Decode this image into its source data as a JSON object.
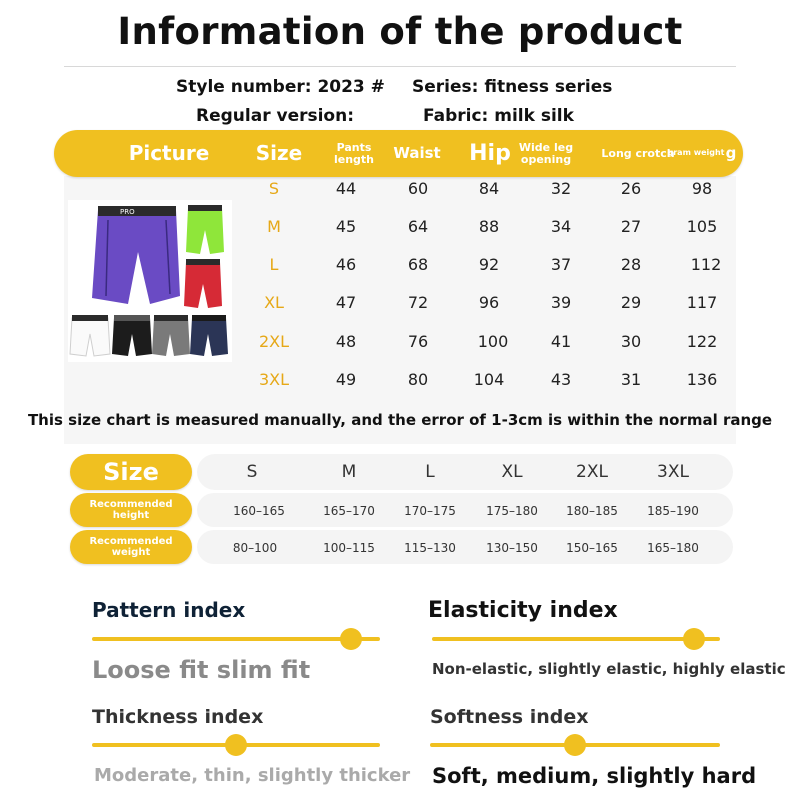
{
  "title": "Information of the product",
  "info": {
    "style_number": "Style number: 2023 #",
    "series": "Series: fitness series",
    "version": "Regular version:",
    "fabric": "Fabric: milk silk"
  },
  "size_table": {
    "headers": {
      "picture": "Picture",
      "size": "Size",
      "pants_length": [
        "Pants",
        "length"
      ],
      "waist": "Waist",
      "hip": "Hip",
      "wide_leg": [
        "Wide leg",
        "opening"
      ],
      "long_crotch": "Long crotch",
      "gram_weight": "gram weight",
      "gram_unit": "g"
    },
    "rows": [
      {
        "size": "S",
        "pants_length": "44",
        "waist": "60",
        "hip": "84",
        "wide_leg": "32",
        "long_crotch": "26",
        "weight": "98"
      },
      {
        "size": "M",
        "pants_length": "45",
        "waist": "64",
        "hip": "88",
        "wide_leg": "34",
        "long_crotch": "27",
        "weight": "105"
      },
      {
        "size": "L",
        "pants_length": "46",
        "waist": "68",
        "hip": "92",
        "wide_leg": "37",
        "long_crotch": "28",
        "weight": "112"
      },
      {
        "size": "XL",
        "pants_length": "47",
        "waist": "72",
        "hip": "96",
        "wide_leg": "39",
        "long_crotch": "29",
        "weight": "117"
      },
      {
        "size": "2XL",
        "pants_length": "48",
        "waist": "76",
        "hip": "100",
        "wide_leg": "41",
        "long_crotch": "30",
        "weight": "122"
      },
      {
        "size": "3XL",
        "pants_length": "49",
        "waist": "80",
        "hip": "104",
        "wide_leg": "43",
        "long_crotch": "31",
        "weight": "136"
      }
    ],
    "waistband_text": "PRO"
  },
  "note": "This size chart is measured manually, and the error of 1-3cm is within the normal range",
  "recommend": {
    "size_label": "Size",
    "height_label": [
      "Recommended",
      "height"
    ],
    "weight_label": [
      "Recommended",
      "weight"
    ],
    "sizes": [
      "S",
      "M",
      "L",
      "XL",
      "2XL",
      "3XL"
    ],
    "heights": [
      "160–165",
      "165–170",
      "170–175",
      "175–180",
      "180–185",
      "185–190"
    ],
    "weights": [
      "80–100",
      "100–115",
      "115–130",
      "130–150",
      "150–165",
      "165–180"
    ]
  },
  "indexes": {
    "pattern": {
      "title": "Pattern index",
      "text": "Loose fit slim fit",
      "level": 0.9
    },
    "elasticity": {
      "title": "Elasticity index",
      "text": "Non-elastic, slightly elastic, highly elastic",
      "level": 0.91
    },
    "thickness": {
      "title": "Thickness index",
      "text": "Moderate, thin, slightly thicker",
      "level": 0.5
    },
    "softness": {
      "title": "Softness index",
      "text": "Soft, medium, slightly hard",
      "level": 0.5
    }
  },
  "colors": {
    "accent": "#f0c020",
    "size_text": "#e6a817",
    "shorts": [
      "#6a4bc4",
      "#8fe63a",
      "#d62a36",
      "#ffffff",
      "#1c1c1c",
      "#7a7a7a",
      "#2b3556"
    ]
  }
}
